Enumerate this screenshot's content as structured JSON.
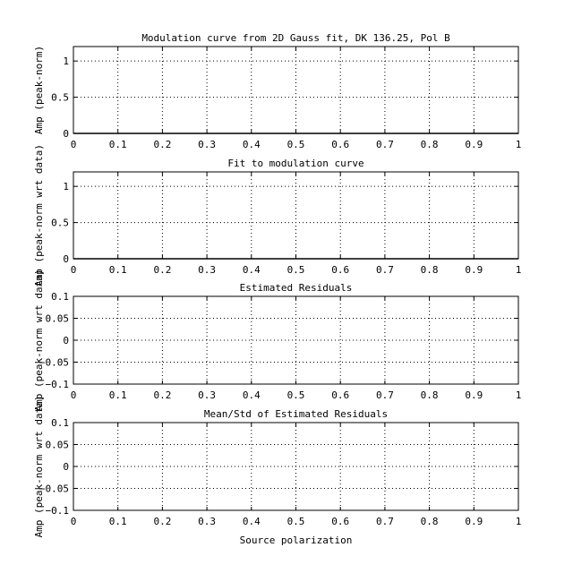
{
  "chart_data": [
    {
      "type": "line",
      "title": "Modulation curve from 2D Gauss fit, DK 136.25, Pol B",
      "xlabel": "",
      "ylabel": "Amp (peak-norm)",
      "xlim": [
        0,
        1
      ],
      "ylim": [
        0,
        1.2
      ],
      "xticks": [
        0,
        0.1,
        0.2,
        0.3,
        0.4,
        0.5,
        0.6,
        0.7,
        0.8,
        0.9,
        1
      ],
      "xtick_labels": [
        "0",
        "0.1",
        "0.2",
        "0.3",
        "0.4",
        "0.5",
        "0.6",
        "0.7",
        "0.8",
        "0.9",
        "1"
      ],
      "yticks": [
        0,
        0.5,
        1
      ],
      "ytick_labels": [
        "0",
        "0.5",
        "1"
      ],
      "grid": true,
      "series": [
        {
          "x": [
            0,
            1
          ],
          "y": [
            0,
            0
          ]
        }
      ]
    },
    {
      "type": "line",
      "title": "Fit to modulation curve",
      "xlabel": "",
      "ylabel": "Amp (peak-norm wrt data)",
      "xlim": [
        0,
        1
      ],
      "ylim": [
        0,
        1.2
      ],
      "xticks": [
        0,
        0.1,
        0.2,
        0.3,
        0.4,
        0.5,
        0.6,
        0.7,
        0.8,
        0.9,
        1
      ],
      "xtick_labels": [
        "0",
        "0.1",
        "0.2",
        "0.3",
        "0.4",
        "0.5",
        "0.6",
        "0.7",
        "0.8",
        "0.9",
        "1"
      ],
      "yticks": [
        0,
        0.5,
        1
      ],
      "ytick_labels": [
        "0",
        "0.5",
        "1"
      ],
      "grid": true,
      "series": [
        {
          "x": [
            0,
            1
          ],
          "y": [
            0,
            0
          ]
        }
      ]
    },
    {
      "type": "line",
      "title": "Estimated Residuals",
      "xlabel": "",
      "ylabel": "Amp (peak-norm wrt data)",
      "xlim": [
        0,
        1
      ],
      "ylim": [
        -0.1,
        0.1
      ],
      "xticks": [
        0,
        0.1,
        0.2,
        0.3,
        0.4,
        0.5,
        0.6,
        0.7,
        0.8,
        0.9,
        1
      ],
      "xtick_labels": [
        "0",
        "0.1",
        "0.2",
        "0.3",
        "0.4",
        "0.5",
        "0.6",
        "0.7",
        "0.8",
        "0.9",
        "1"
      ],
      "yticks": [
        -0.1,
        -0.05,
        0,
        0.05,
        0.1
      ],
      "ytick_labels": [
        "−0.1",
        "−0.05",
        "0",
        "0.05",
        "0.1"
      ],
      "grid": true,
      "series": []
    },
    {
      "type": "line",
      "title": "Mean/Std of Estimated Residuals",
      "xlabel": "Source polarization",
      "ylabel": "Amp (peak-norm wrt data)",
      "xlim": [
        0,
        1
      ],
      "ylim": [
        -0.1,
        0.1
      ],
      "xticks": [
        0,
        0.1,
        0.2,
        0.3,
        0.4,
        0.5,
        0.6,
        0.7,
        0.8,
        0.9,
        1
      ],
      "xtick_labels": [
        "0",
        "0.1",
        "0.2",
        "0.3",
        "0.4",
        "0.5",
        "0.6",
        "0.7",
        "0.8",
        "0.9",
        "1"
      ],
      "yticks": [
        -0.1,
        -0.05,
        0,
        0.05,
        0.1
      ],
      "ytick_labels": [
        "−0.1",
        "−0.05",
        "0",
        "0.05",
        "0.1"
      ],
      "grid": true,
      "series": []
    }
  ]
}
